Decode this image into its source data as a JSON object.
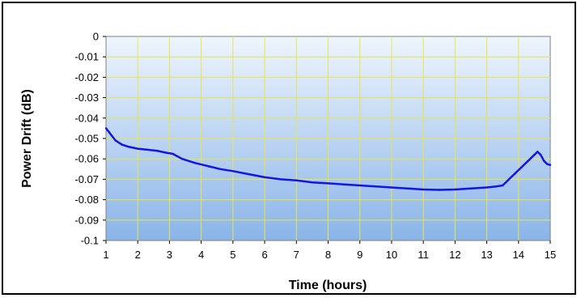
{
  "chart_data": {
    "type": "line",
    "title": "",
    "xlabel": "Time (hours)",
    "ylabel": "Power Drift (dB)",
    "xlim": [
      1,
      15
    ],
    "ylim": [
      -0.1,
      0
    ],
    "x_ticks": [
      "1",
      "2",
      "3",
      "4",
      "5",
      "6",
      "7",
      "8",
      "9",
      "10",
      "11",
      "12",
      "13",
      "14",
      "15"
    ],
    "y_ticks": [
      "0",
      "-0.01",
      "-0.02",
      "-0.03",
      "-0.04",
      "-0.05",
      "-0.06",
      "-0.07",
      "-0.08",
      "-0.09",
      "-0.1"
    ],
    "grid": true,
    "legend": "none",
    "colors": {
      "line": "#1414e6",
      "grid": "#e6e64a",
      "plot_bg_top": "#eef5fd",
      "plot_bg_bottom": "#8ab4e8"
    },
    "series": [
      {
        "x": [
          1.0,
          1.1,
          1.2,
          1.3,
          1.5,
          1.7,
          2.0,
          2.3,
          2.6,
          2.9,
          3.1,
          3.4,
          3.8,
          4.2,
          4.6,
          5.0,
          5.5,
          6.0,
          6.5,
          7.0,
          7.5,
          8.0,
          8.5,
          9.0,
          9.5,
          10.0,
          10.5,
          11.0,
          11.5,
          12.0,
          12.5,
          13.0,
          13.3,
          13.5,
          13.7,
          13.9,
          14.1,
          14.3,
          14.5,
          14.6,
          14.7,
          14.8,
          14.9,
          15.0
        ],
        "y": [
          -0.045,
          -0.047,
          -0.049,
          -0.051,
          -0.053,
          -0.054,
          -0.055,
          -0.0555,
          -0.056,
          -0.057,
          -0.0575,
          -0.06,
          -0.062,
          -0.0635,
          -0.065,
          -0.066,
          -0.0675,
          -0.069,
          -0.07,
          -0.0705,
          -0.0715,
          -0.072,
          -0.0725,
          -0.073,
          -0.0735,
          -0.074,
          -0.0745,
          -0.075,
          -0.0752,
          -0.075,
          -0.0745,
          -0.074,
          -0.0735,
          -0.073,
          -0.07,
          -0.067,
          -0.064,
          -0.061,
          -0.058,
          -0.0565,
          -0.058,
          -0.061,
          -0.0625,
          -0.063
        ]
      }
    ]
  }
}
